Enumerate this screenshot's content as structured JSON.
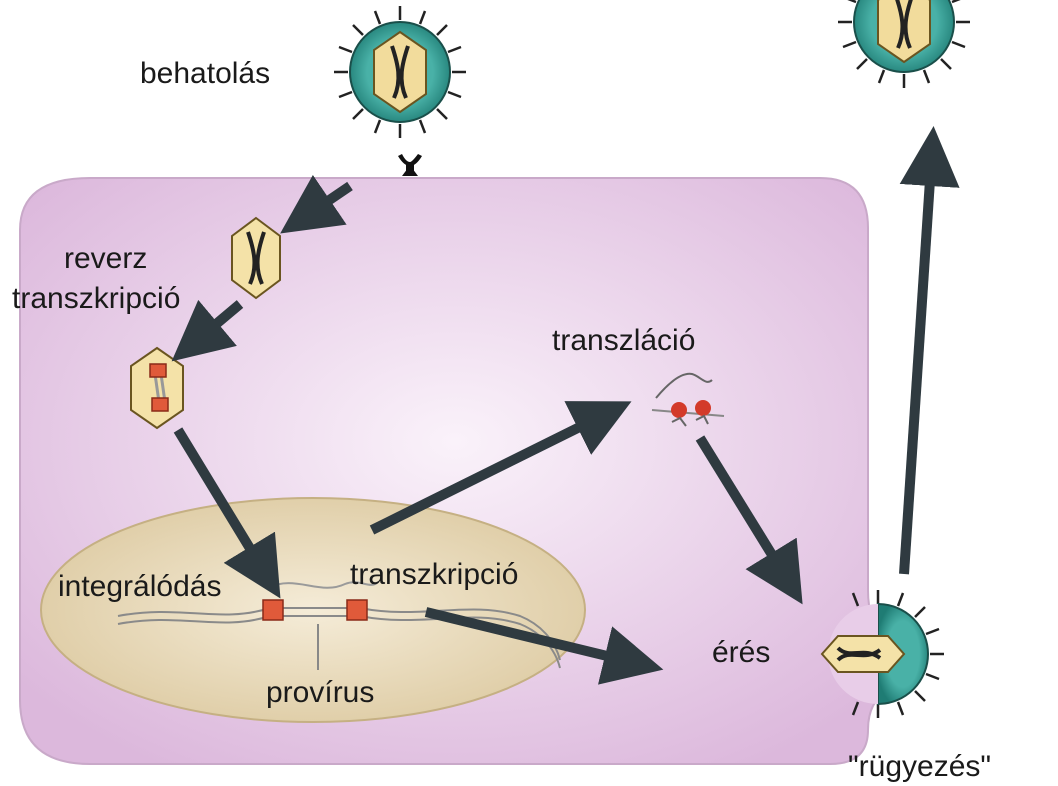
{
  "labels": {
    "entry": "behatolás",
    "reverse_transcription_line1": "reverz",
    "reverse_transcription_line2": "transzkripció",
    "translation": "transzláció",
    "integration": "integrálódás",
    "transcription": "transzkripció",
    "provirus": "provírus",
    "maturation": "érés",
    "budding": "\"rügyezés\""
  },
  "colors": {
    "cell": "#e6c8e6",
    "nucleus": "#e6d8b4",
    "virus_shell": "#2e9c93",
    "capsid": "#f2dc9c",
    "arrow": "#2f3a40",
    "marker": "#e05a3a"
  }
}
